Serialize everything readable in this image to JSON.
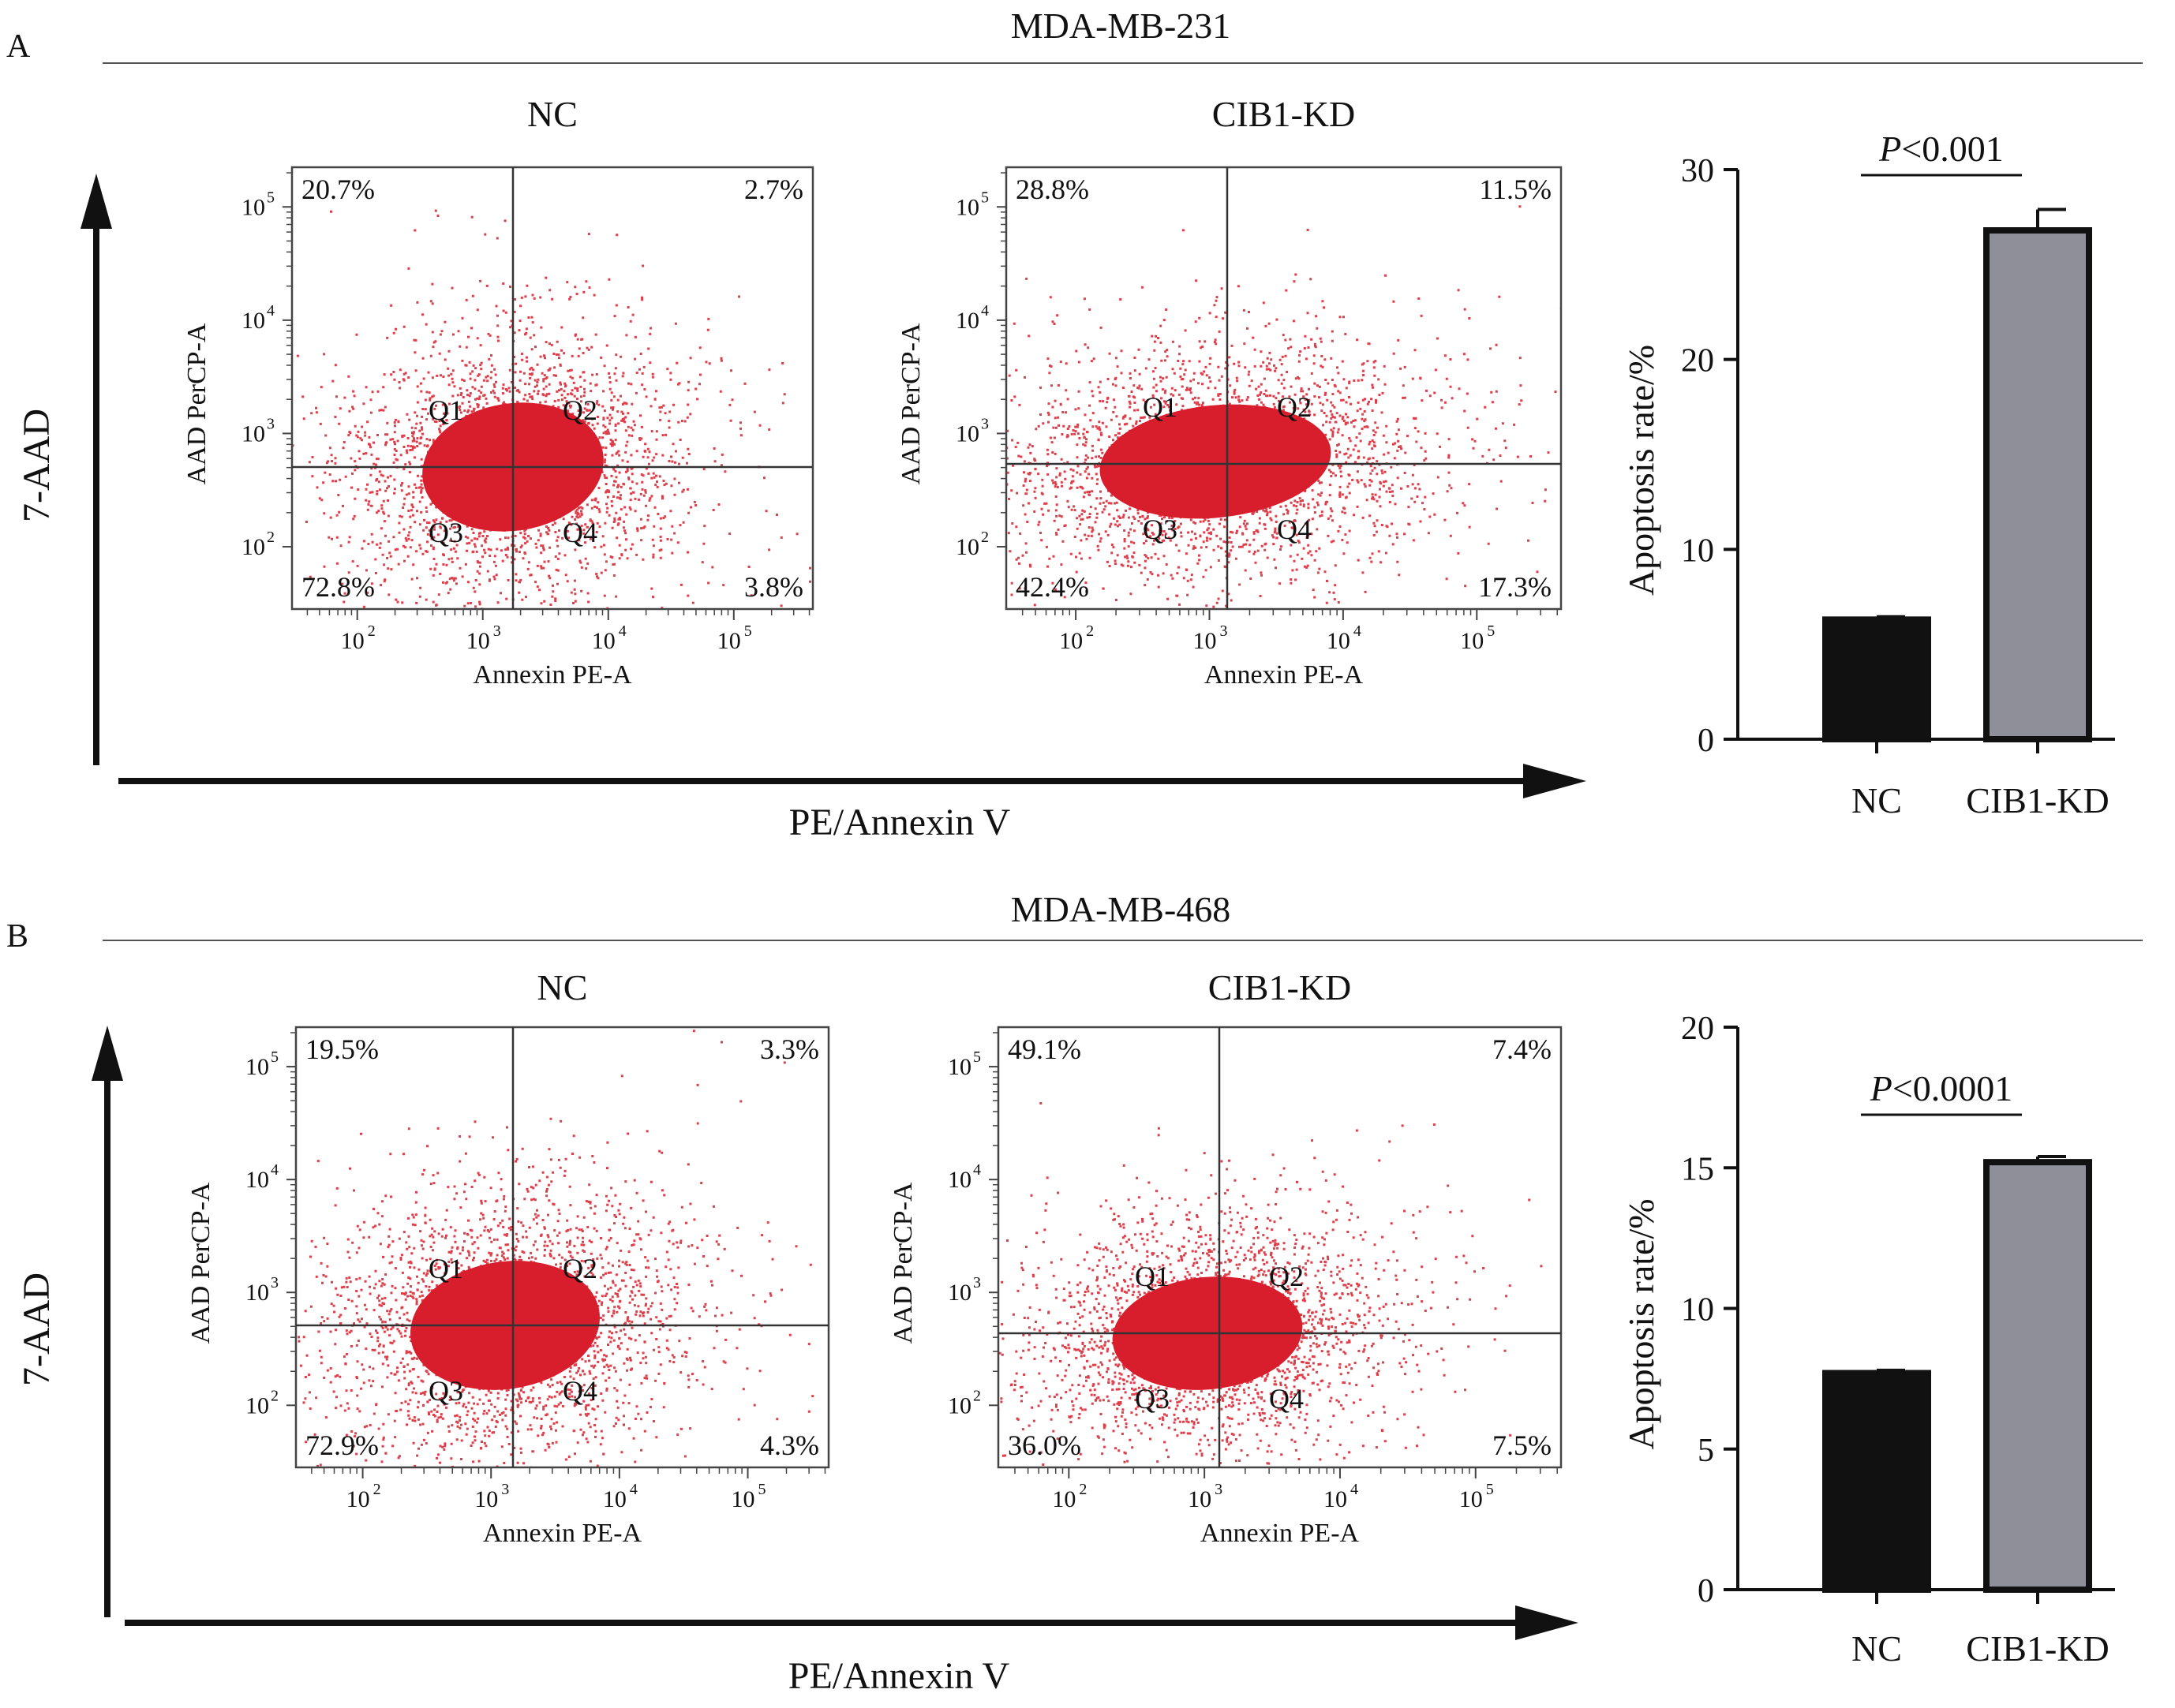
{
  "figure": {
    "panels": [
      {
        "letter": "A",
        "cell_line": "MDA-MB-231",
        "y_axis": "7-AAD",
        "x_axis": "PE/Annexin V",
        "flow_plots": [
          {
            "condition": "NC",
            "x_label": "Annexin PE-A",
            "y_label": "AAD PerCP-A",
            "quadrants": {
              "Q1": "20.7%",
              "Q2": "2.7%",
              "Q3": "72.8%",
              "Q4": "3.8%"
            }
          },
          {
            "condition": "CIB1-KD",
            "x_label": "Annexin PE-A",
            "y_label": "AAD PerCP-A",
            "quadrants": {
              "Q1": "28.8%",
              "Q2": "11.5%",
              "Q3": "42.4%",
              "Q4": "17.3%"
            }
          }
        ]
      },
      {
        "letter": "B",
        "cell_line": "MDA-MB-468",
        "y_axis": "7-AAD",
        "x_axis": "PE/Annexin V",
        "flow_plots": [
          {
            "condition": "NC",
            "x_label": "Annexin PE-A",
            "y_label": "AAD PerCP-A",
            "quadrants": {
              "Q1": "19.5%",
              "Q2": "3.3%",
              "Q3": "72.9%",
              "Q4": "4.3%"
            }
          },
          {
            "condition": "CIB1-KD",
            "x_label": "Annexin PE-A",
            "y_label": "AAD PerCP-A",
            "quadrants": {
              "Q1": "49.1%",
              "Q2": "7.4%",
              "Q3": "36.0%",
              "Q4": "7.5%"
            }
          }
        ]
      }
    ],
    "flow_axis_ticks": [
      "10",
      "10",
      "10",
      "10"
    ],
    "flow_axis_exponents": [
      "2",
      "3",
      "4",
      "5"
    ],
    "quadrant_names": [
      "Q1",
      "Q2",
      "Q3",
      "Q4"
    ],
    "colors": {
      "dots": "#d81e2c",
      "nc_bar": "#111111",
      "kd_bar": "#8e8f98",
      "lines": "#222222"
    }
  },
  "chart_data": [
    {
      "type": "bar",
      "panel": "A",
      "categories": [
        "NC",
        "CIB1-KD"
      ],
      "values": [
        6.3,
        26.8
      ],
      "errors": [
        0.15,
        1.1
      ],
      "ylabel": "Apoptosis rate/%",
      "ylim": [
        0,
        30
      ],
      "yticks": [
        0,
        10,
        20,
        30
      ],
      "pvalue": {
        "italic": "P",
        "rest": "<0.001"
      }
    },
    {
      "type": "bar",
      "panel": "B",
      "categories": [
        "NC",
        "CIB1-KD"
      ],
      "values": [
        7.7,
        15.2
      ],
      "errors": [
        0.1,
        0.2
      ],
      "ylabel": "Apoptosis rate/%",
      "ylim": [
        0,
        20
      ],
      "yticks": [
        0,
        5,
        10,
        15,
        20
      ],
      "pvalue": {
        "italic": "P",
        "rest": "<0.0001"
      }
    }
  ]
}
